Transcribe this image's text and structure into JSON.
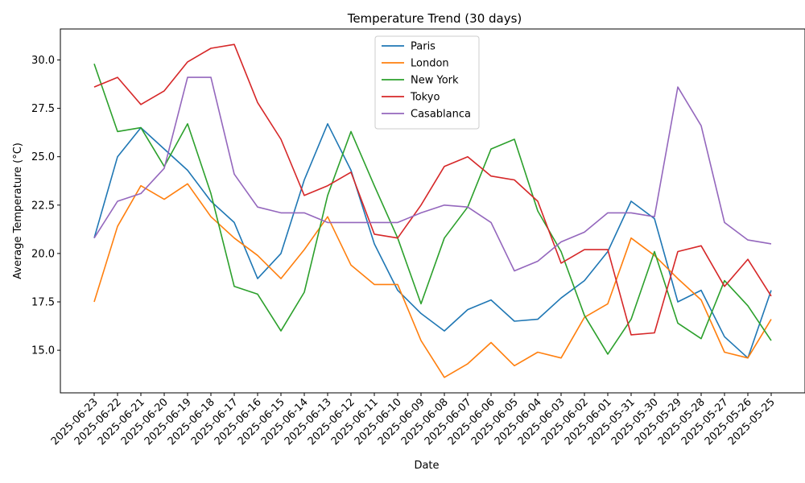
{
  "chart_data": {
    "type": "line",
    "title": "Temperature Trend (30 days)",
    "xlabel": "Date",
    "ylabel": "Average Temperature (°C)",
    "ylim": [
      12.8,
      31.6
    ],
    "yticks": [
      "15.0",
      "17.5",
      "20.0",
      "22.5",
      "25.0",
      "27.5",
      "30.0"
    ],
    "grid": false,
    "legend_position": "top-center",
    "categories": [
      "2025-06-23",
      "2025-06-22",
      "2025-06-21",
      "2025-06-20",
      "2025-06-19",
      "2025-06-18",
      "2025-06-17",
      "2025-06-16",
      "2025-06-15",
      "2025-06-14",
      "2025-06-13",
      "2025-06-12",
      "2025-06-11",
      "2025-06-10",
      "2025-06-09",
      "2025-06-08",
      "2025-06-07",
      "2025-06-06",
      "2025-06-05",
      "2025-06-04",
      "2025-06-03",
      "2025-06-02",
      "2025-06-01",
      "2025-05-31",
      "2025-05-30",
      "2025-05-29",
      "2025-05-28",
      "2025-05-27",
      "2025-05-26",
      "2025-05-25"
    ],
    "series": [
      {
        "name": "Paris",
        "color": "#1f77b4",
        "values": [
          20.8,
          25.0,
          26.5,
          25.4,
          24.3,
          22.7,
          21.6,
          18.7,
          20.0,
          23.8,
          26.7,
          24.3,
          20.5,
          18.1,
          16.9,
          16.0,
          17.1,
          17.6,
          16.5,
          16.6,
          17.7,
          18.6,
          20.1,
          22.7,
          21.8,
          17.5,
          18.1,
          15.7,
          14.6,
          18.1
        ]
      },
      {
        "name": "London",
        "color": "#ff7f0e",
        "values": [
          17.5,
          21.4,
          23.5,
          22.8,
          23.6,
          21.9,
          20.8,
          19.9,
          18.7,
          20.2,
          21.9,
          19.4,
          18.4,
          18.4,
          15.5,
          13.6,
          14.3,
          15.4,
          14.2,
          14.9,
          14.6,
          16.7,
          17.4,
          20.8,
          19.9,
          18.7,
          17.6,
          14.9,
          14.6,
          16.6
        ]
      },
      {
        "name": "New York",
        "color": "#2ca02c",
        "values": [
          29.8,
          26.3,
          26.5,
          24.5,
          26.7,
          23.1,
          18.3,
          17.9,
          16.0,
          18.0,
          23.0,
          26.3,
          23.5,
          20.8,
          17.4,
          20.8,
          22.4,
          25.4,
          25.9,
          22.2,
          20.1,
          16.8,
          14.8,
          16.6,
          20.1,
          16.4,
          15.6,
          18.6,
          17.3,
          15.5
        ]
      },
      {
        "name": "Tokyo",
        "color": "#d62728",
        "values": [
          28.6,
          29.1,
          27.7,
          28.4,
          29.9,
          30.6,
          30.8,
          27.8,
          25.9,
          23.0,
          23.5,
          24.2,
          21.0,
          20.8,
          22.5,
          24.5,
          25.0,
          24.0,
          23.8,
          22.7,
          19.5,
          20.2,
          20.2,
          15.8,
          15.9,
          20.1,
          20.4,
          18.3,
          19.7,
          17.8
        ]
      },
      {
        "name": "Casablanca",
        "color": "#9467bd",
        "values": [
          20.8,
          22.7,
          23.1,
          24.4,
          29.1,
          29.1,
          24.1,
          22.4,
          22.1,
          22.1,
          21.6,
          21.6,
          21.6,
          21.6,
          22.1,
          22.5,
          22.4,
          21.6,
          19.1,
          19.6,
          20.6,
          21.1,
          22.1,
          22.1,
          21.9,
          28.6,
          26.6,
          21.6,
          20.7,
          20.5
        ]
      }
    ]
  }
}
